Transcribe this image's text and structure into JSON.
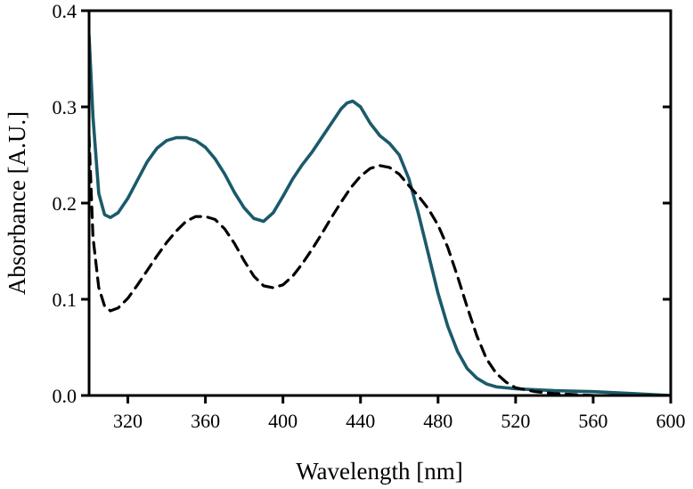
{
  "chart_data": {
    "type": "line",
    "title": "",
    "xlabel": "Wavelength [nm]",
    "ylabel": "Absorbance [A.U.]",
    "xlim": [
      300,
      600
    ],
    "ylim": [
      0.0,
      0.4
    ],
    "xticks": [
      320,
      360,
      400,
      440,
      480,
      520,
      560,
      600
    ],
    "xtick_labels": [
      "320",
      "360",
      "400",
      "440",
      "480",
      "520",
      "560",
      "600"
    ],
    "yticks": [
      0.0,
      0.1,
      0.2,
      0.3,
      0.4
    ],
    "ytick_labels": [
      "0.0",
      "0.1",
      "0.2",
      "0.3",
      "0.4"
    ],
    "grid": false,
    "legend": null,
    "series": [
      {
        "name": "solid",
        "color": "#1b5a6a",
        "style": "solid",
        "x": [
          300,
          302,
          305,
          308,
          311,
          315,
          320,
          325,
          330,
          335,
          340,
          345,
          350,
          355,
          360,
          365,
          370,
          375,
          380,
          385,
          390,
          395,
          400,
          405,
          410,
          415,
          420,
          425,
          430,
          433,
          436,
          440,
          445,
          450,
          455,
          460,
          465,
          470,
          475,
          480,
          485,
          490,
          495,
          500,
          505,
          510,
          515,
          520,
          530,
          540,
          560,
          580,
          600
        ],
        "y": [
          0.374,
          0.29,
          0.21,
          0.188,
          0.185,
          0.19,
          0.205,
          0.224,
          0.243,
          0.257,
          0.265,
          0.268,
          0.268,
          0.265,
          0.258,
          0.246,
          0.23,
          0.211,
          0.195,
          0.184,
          0.181,
          0.19,
          0.207,
          0.225,
          0.24,
          0.253,
          0.268,
          0.283,
          0.298,
          0.304,
          0.306,
          0.3,
          0.283,
          0.27,
          0.262,
          0.25,
          0.225,
          0.188,
          0.147,
          0.106,
          0.072,
          0.046,
          0.028,
          0.018,
          0.012,
          0.009,
          0.008,
          0.007,
          0.006,
          0.005,
          0.004,
          0.002,
          0.0
        ]
      },
      {
        "name": "dashed",
        "color": "#000000",
        "style": "dashed",
        "x": [
          300,
          302,
          305,
          308,
          311,
          315,
          320,
          325,
          330,
          335,
          340,
          345,
          350,
          355,
          360,
          365,
          370,
          375,
          380,
          385,
          390,
          395,
          400,
          405,
          410,
          415,
          420,
          425,
          430,
          435,
          440,
          445,
          450,
          455,
          460,
          465,
          470,
          475,
          480,
          485,
          490,
          495,
          500,
          505,
          510,
          515,
          520,
          530,
          540,
          560,
          580,
          600
        ],
        "y": [
          0.27,
          0.165,
          0.112,
          0.093,
          0.088,
          0.091,
          0.101,
          0.115,
          0.13,
          0.145,
          0.159,
          0.171,
          0.181,
          0.186,
          0.186,
          0.183,
          0.173,
          0.158,
          0.14,
          0.124,
          0.114,
          0.112,
          0.115,
          0.124,
          0.137,
          0.152,
          0.168,
          0.185,
          0.201,
          0.216,
          0.228,
          0.236,
          0.239,
          0.237,
          0.23,
          0.218,
          0.207,
          0.194,
          0.177,
          0.154,
          0.124,
          0.092,
          0.062,
          0.038,
          0.023,
          0.014,
          0.008,
          0.004,
          0.002,
          0.0,
          -0.001,
          -0.001
        ]
      }
    ]
  }
}
